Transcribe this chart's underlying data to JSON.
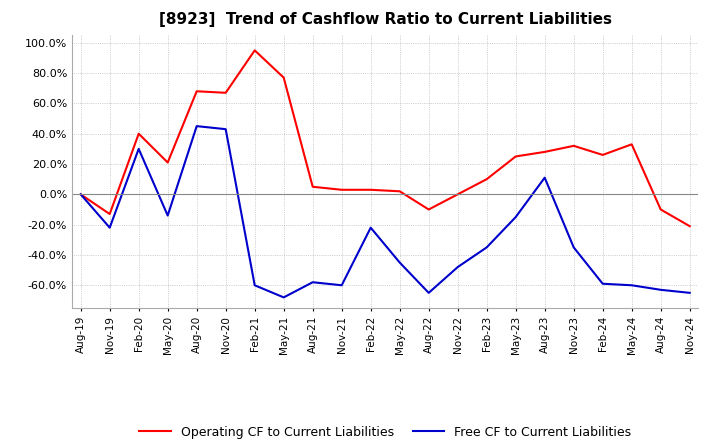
{
  "title": "[8923]  Trend of Cashflow Ratio to Current Liabilities",
  "x_labels": [
    "Aug-19",
    "Nov-19",
    "Feb-20",
    "May-20",
    "Aug-20",
    "Nov-20",
    "Feb-21",
    "May-21",
    "Aug-21",
    "Nov-21",
    "Feb-22",
    "May-22",
    "Aug-22",
    "Nov-22",
    "Feb-23",
    "May-23",
    "Aug-23",
    "Nov-23",
    "Feb-24",
    "May-24",
    "Aug-24",
    "Nov-24"
  ],
  "operating_cf": [
    0.0,
    -0.13,
    0.4,
    0.21,
    0.68,
    0.67,
    0.95,
    0.77,
    0.05,
    0.03,
    0.03,
    0.02,
    -0.1,
    0.0,
    0.1,
    0.25,
    0.28,
    0.32,
    0.26,
    0.33,
    -0.1,
    -0.21
  ],
  "free_cf": [
    0.0,
    -0.22,
    0.3,
    -0.14,
    0.45,
    0.43,
    -0.6,
    -0.68,
    -0.58,
    -0.6,
    -0.22,
    -0.45,
    -0.65,
    -0.48,
    -0.35,
    -0.15,
    0.11,
    -0.35,
    -0.59,
    -0.6,
    -0.63,
    -0.65
  ],
  "operating_color": "#ff0000",
  "free_color": "#0000cc",
  "ylim": [
    -0.75,
    1.05
  ],
  "yticks": [
    -0.6,
    -0.4,
    -0.2,
    0.0,
    0.2,
    0.4,
    0.6,
    0.8,
    1.0
  ],
  "grid_color": "#aaaaaa",
  "background_color": "#ffffff",
  "legend_op": "Operating CF to Current Liabilities",
  "legend_free": "Free CF to Current Liabilities"
}
